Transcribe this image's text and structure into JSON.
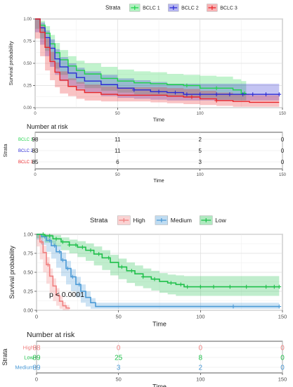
{
  "chart_data": [
    {
      "type": "line",
      "subtype": "kaplan-meier survival curves with confidence bands",
      "legend": {
        "title": "Strata",
        "placement": "top"
      },
      "xlabel": "Time",
      "ylabel": "Survival probability",
      "xlim": [
        0,
        150
      ],
      "ylim": [
        0,
        1
      ],
      "xticks": [
        "0",
        "50",
        "100",
        "150"
      ],
      "yticks": [
        "0.00",
        "0.25",
        "0.50",
        "0.75",
        "1.00"
      ],
      "grid": true,
      "series": [
        {
          "name": "BCLC 1",
          "color": "#1fd34a",
          "x": [
            0,
            3,
            6,
            9,
            12,
            15,
            20,
            25,
            30,
            40,
            50,
            60,
            70,
            80,
            90,
            100,
            110,
            120,
            125,
            128
          ],
          "y": [
            1.0,
            0.93,
            0.84,
            0.72,
            0.62,
            0.54,
            0.47,
            0.42,
            0.38,
            0.33,
            0.3,
            0.28,
            0.27,
            0.26,
            0.25,
            0.22,
            0.22,
            0.2,
            0.16,
            0.16
          ],
          "lower": [
            1.0,
            0.89,
            0.78,
            0.64,
            0.53,
            0.44,
            0.37,
            0.31,
            0.27,
            0.22,
            0.19,
            0.17,
            0.15,
            0.14,
            0.13,
            0.12,
            0.11,
            0.09,
            0.08,
            0.08
          ],
          "upper": [
            1.0,
            0.98,
            0.92,
            0.82,
            0.73,
            0.65,
            0.58,
            0.53,
            0.5,
            0.46,
            0.43,
            0.41,
            0.4,
            0.38,
            0.37,
            0.36,
            0.35,
            0.32,
            0.3,
            0.3
          ],
          "censor_x": [
            92,
            110,
            127
          ]
        },
        {
          "name": "BCLC 2",
          "color": "#2a2ad4",
          "x": [
            0,
            3,
            6,
            9,
            12,
            15,
            20,
            25,
            30,
            40,
            50,
            60,
            70,
            80,
            90,
            100,
            110,
            120,
            130,
            140,
            148
          ],
          "y": [
            1.0,
            0.9,
            0.79,
            0.67,
            0.55,
            0.46,
            0.39,
            0.34,
            0.3,
            0.26,
            0.22,
            0.2,
            0.18,
            0.17,
            0.15,
            0.15,
            0.15,
            0.15,
            0.15,
            0.15,
            0.15
          ],
          "lower": [
            1.0,
            0.85,
            0.71,
            0.58,
            0.46,
            0.37,
            0.3,
            0.25,
            0.21,
            0.17,
            0.13,
            0.11,
            0.1,
            0.09,
            0.08,
            0.08,
            0.08,
            0.08,
            0.08,
            0.08,
            0.08
          ],
          "upper": [
            1.0,
            0.96,
            0.87,
            0.77,
            0.66,
            0.57,
            0.5,
            0.45,
            0.41,
            0.37,
            0.33,
            0.31,
            0.29,
            0.27,
            0.27,
            0.27,
            0.27,
            0.27,
            0.27,
            0.27,
            0.27
          ],
          "censor_x": [
            60,
            75,
            85,
            92,
            100,
            110,
            118,
            126,
            132,
            140,
            148
          ]
        },
        {
          "name": "BCLC 3",
          "color": "#e8262a",
          "x": [
            0,
            3,
            6,
            9,
            12,
            15,
            20,
            25,
            30,
            40,
            50,
            60,
            70,
            80,
            90,
            100,
            110,
            120,
            130,
            140,
            148
          ],
          "y": [
            1.0,
            0.85,
            0.68,
            0.52,
            0.4,
            0.31,
            0.24,
            0.2,
            0.17,
            0.15,
            0.14,
            0.14,
            0.14,
            0.13,
            0.12,
            0.1,
            0.08,
            0.07,
            0.06,
            0.06,
            0.06
          ],
          "lower": [
            1.0,
            0.78,
            0.58,
            0.42,
            0.31,
            0.23,
            0.16,
            0.13,
            0.1,
            0.08,
            0.07,
            0.07,
            0.07,
            0.06,
            0.05,
            0.04,
            0.03,
            0.02,
            0.01,
            0.01,
            0.01
          ],
          "upper": [
            1.0,
            0.92,
            0.78,
            0.63,
            0.51,
            0.41,
            0.33,
            0.29,
            0.26,
            0.24,
            0.23,
            0.23,
            0.23,
            0.22,
            0.21,
            0.19,
            0.17,
            0.15,
            0.14,
            0.14,
            0.14
          ],
          "censor_x": [
            95,
            110
          ]
        }
      ]
    },
    {
      "type": "table",
      "title": "Number at risk",
      "ylabel": "Strata",
      "xlabel": "Time",
      "xlim": [
        0,
        150
      ],
      "columns": [
        0,
        50,
        100,
        150
      ],
      "xticks": [
        "0",
        "50",
        "100",
        "150"
      ],
      "rows": [
        {
          "label": "BCLC 1",
          "color": "#1fd34a",
          "text_color": "#222222",
          "values": [
            "98",
            "11",
            "2",
            "0"
          ]
        },
        {
          "label": "BCLC 2",
          "color": "#2a2ad4",
          "text_color": "#222222",
          "values": [
            "83",
            "11",
            "5",
            "0"
          ]
        },
        {
          "label": "BCLC 3",
          "color": "#e8262a",
          "text_color": "#222222",
          "values": [
            "85",
            "6",
            "3",
            "0"
          ]
        }
      ]
    },
    {
      "type": "line",
      "subtype": "kaplan-meier survival curves with confidence bands",
      "legend": {
        "title": "Strata",
        "placement": "top"
      },
      "xlabel": "Time",
      "ylabel": "Survival probability",
      "xlim": [
        0,
        150
      ],
      "ylim": [
        0,
        1
      ],
      "xticks": [
        "0",
        "50",
        "100",
        "150"
      ],
      "yticks": [
        "0.00",
        "0.25",
        "0.50",
        "0.75",
        "1.00"
      ],
      "grid": true,
      "annotation": "p < 0.0001",
      "series": [
        {
          "name": "High",
          "color": "#f08080",
          "x": [
            0,
            2,
            4,
            6,
            8,
            10,
            12,
            14,
            16,
            18,
            20
          ],
          "y": [
            1.0,
            0.9,
            0.76,
            0.6,
            0.45,
            0.32,
            0.2,
            0.12,
            0.06,
            0.03,
            0.02
          ],
          "lower": [
            1.0,
            0.84,
            0.67,
            0.5,
            0.35,
            0.23,
            0.12,
            0.06,
            0.02,
            0.0,
            0.0
          ],
          "upper": [
            1.0,
            0.96,
            0.85,
            0.7,
            0.55,
            0.42,
            0.29,
            0.19,
            0.11,
            0.07,
            0.05
          ],
          "censor_x": [
            3,
            7
          ]
        },
        {
          "name": "Medium",
          "color": "#4b9ad6",
          "x": [
            0,
            3,
            6,
            9,
            12,
            15,
            18,
            21,
            24,
            27,
            30,
            33,
            36,
            40,
            50,
            60,
            80,
            100,
            120,
            148
          ],
          "y": [
            1.0,
            0.97,
            0.92,
            0.85,
            0.77,
            0.66,
            0.55,
            0.44,
            0.34,
            0.25,
            0.17,
            0.1,
            0.05,
            0.05,
            0.05,
            0.05,
            0.05,
            0.05,
            0.05,
            0.05
          ],
          "lower": [
            1.0,
            0.93,
            0.86,
            0.77,
            0.68,
            0.56,
            0.45,
            0.34,
            0.25,
            0.17,
            0.1,
            0.05,
            0.02,
            0.02,
            0.02,
            0.02,
            0.02,
            0.02,
            0.02,
            0.02
          ],
          "upper": [
            1.0,
            1.0,
            0.97,
            0.92,
            0.86,
            0.76,
            0.65,
            0.54,
            0.44,
            0.34,
            0.25,
            0.16,
            0.1,
            0.1,
            0.1,
            0.1,
            0.1,
            0.1,
            0.1,
            0.1
          ],
          "censor_x": [
            5,
            8,
            11,
            14,
            16,
            19,
            22,
            26,
            120,
            148
          ]
        },
        {
          "name": "Low",
          "color": "#1ec04a",
          "x": [
            0,
            5,
            10,
            15,
            20,
            25,
            30,
            35,
            40,
            45,
            50,
            55,
            60,
            65,
            70,
            75,
            80,
            85,
            90,
            100,
            120,
            148
          ],
          "y": [
            1.0,
            0.98,
            0.94,
            0.9,
            0.86,
            0.83,
            0.79,
            0.74,
            0.69,
            0.63,
            0.57,
            0.52,
            0.48,
            0.44,
            0.41,
            0.38,
            0.36,
            0.34,
            0.31,
            0.31,
            0.31,
            0.31
          ],
          "lower": [
            1.0,
            0.95,
            0.89,
            0.84,
            0.79,
            0.75,
            0.7,
            0.65,
            0.59,
            0.53,
            0.46,
            0.41,
            0.36,
            0.32,
            0.29,
            0.26,
            0.23,
            0.21,
            0.19,
            0.19,
            0.19,
            0.19
          ],
          "upper": [
            1.0,
            1.0,
            0.99,
            0.96,
            0.93,
            0.91,
            0.88,
            0.84,
            0.79,
            0.73,
            0.68,
            0.63,
            0.59,
            0.55,
            0.52,
            0.49,
            0.47,
            0.46,
            0.45,
            0.45,
            0.45,
            0.45
          ],
          "censor_x": [
            4,
            8,
            12,
            16,
            20,
            24,
            28,
            33,
            38,
            44,
            52,
            58,
            65,
            72,
            82,
            88,
            92,
            100,
            108,
            118,
            128,
            140,
            145,
            148
          ]
        }
      ]
    },
    {
      "type": "table",
      "title": "Number at risk",
      "ylabel": "Strata",
      "xlabel": "Time",
      "xlim": [
        0,
        150
      ],
      "columns": [
        0,
        50,
        100,
        150
      ],
      "xticks": [
        "0",
        "50",
        "100",
        "150"
      ],
      "rows": [
        {
          "label": "High",
          "color": "#f08080",
          "text_color": "#f08080",
          "values": [
            "88",
            "0",
            "0",
            "0"
          ]
        },
        {
          "label": "Low",
          "color": "#1ec04a",
          "text_color": "#1ec04a",
          "values": [
            "89",
            "25",
            "8",
            "0"
          ]
        },
        {
          "label": "Medium",
          "color": "#4b9ad6",
          "text_color": "#4b9ad6",
          "values": [
            "89",
            "3",
            "2",
            "0"
          ]
        }
      ]
    }
  ]
}
